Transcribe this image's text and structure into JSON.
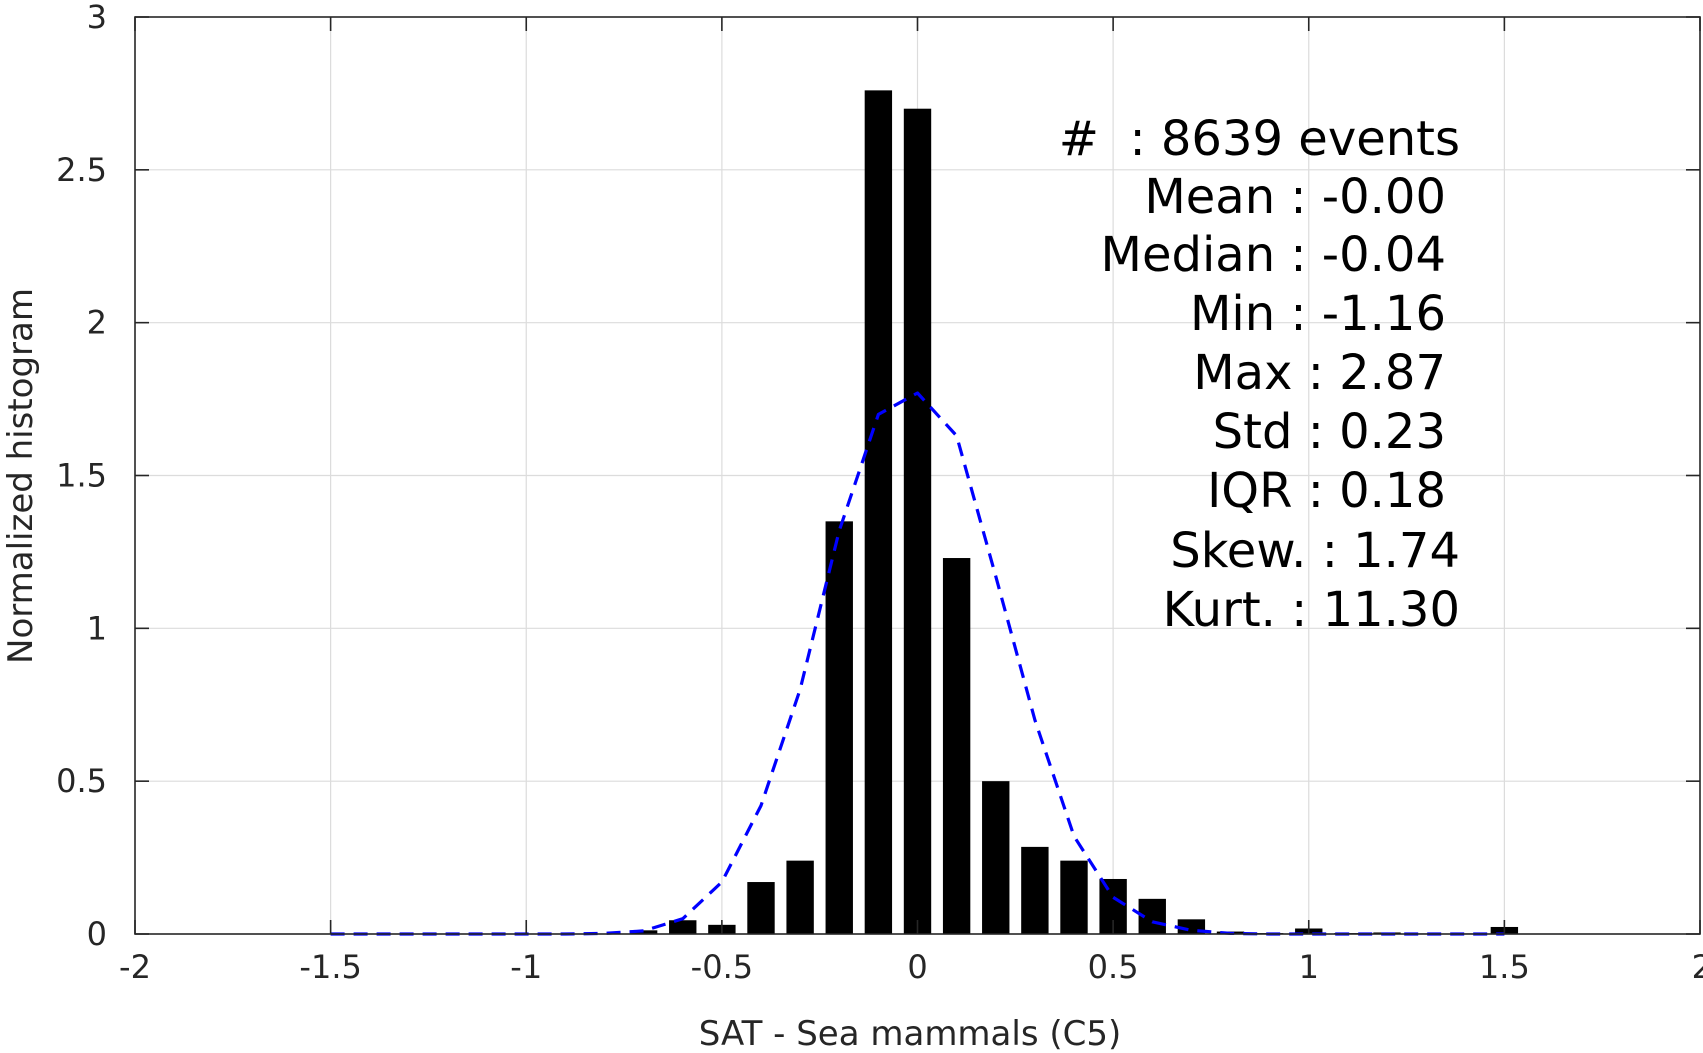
{
  "chart_data": {
    "type": "bar",
    "xlabel": "SAT - Sea mammals (C5)",
    "ylabel": "Normalized histogram",
    "xlim": [
      -2,
      2
    ],
    "ylim": [
      0,
      3
    ],
    "x_ticks": [
      -2,
      -1.5,
      -1,
      -0.5,
      0,
      0.5,
      1,
      1.5,
      2
    ],
    "x_tick_labels": [
      "-2",
      "-1.5",
      "-1",
      "-0.5",
      "0",
      "0.5",
      "1",
      "1.5",
      "2"
    ],
    "y_ticks": [
      0,
      0.5,
      1,
      1.5,
      2,
      2.5,
      3
    ],
    "y_tick_labels": [
      "0",
      "0.5",
      "1",
      "1.5",
      "2",
      "2.5",
      "3"
    ],
    "grid": true,
    "bar_width": 0.07,
    "bars": {
      "x": [
        -0.7,
        -0.6,
        -0.5,
        -0.4,
        -0.3,
        -0.2,
        -0.1,
        0.0,
        0.1,
        0.2,
        0.3,
        0.4,
        0.5,
        0.6,
        0.7,
        0.8,
        0.9,
        1.0,
        1.1,
        1.2,
        1.3,
        1.4,
        1.5
      ],
      "values": [
        0.012,
        0.045,
        0.03,
        0.17,
        0.24,
        1.35,
        2.76,
        2.7,
        1.23,
        0.5,
        0.285,
        0.24,
        0.18,
        0.115,
        0.048,
        0.008,
        0.003,
        0.018,
        0.003,
        0.005,
        0.002,
        0.002,
        0.023
      ],
      "color": "#000000"
    },
    "fit_curve": {
      "style": "dashed",
      "color": "#0000ff",
      "x": [
        -1.5,
        -1.0,
        -0.9,
        -0.8,
        -0.7,
        -0.6,
        -0.5,
        -0.4,
        -0.3,
        -0.2,
        -0.1,
        0.0,
        0.1,
        0.2,
        0.3,
        0.4,
        0.5,
        0.6,
        0.7,
        0.8,
        0.9,
        1.0,
        1.5
      ],
      "y": [
        0.0,
        0.0,
        0.0,
        0.002,
        0.01,
        0.05,
        0.17,
        0.42,
        0.8,
        1.32,
        1.7,
        1.77,
        1.63,
        1.17,
        0.7,
        0.32,
        0.12,
        0.04,
        0.012,
        0.002,
        0.0,
        0.0,
        0.0
      ]
    },
    "annotations": [
      "#  : 8639 events",
      "Mean : -0.00",
      "Median : -0.04",
      "Min : -1.16",
      "Max : 2.87",
      "Std : 0.23",
      "IQR : 0.18",
      "Skew. : 1.74",
      "Kurt. : 11.30"
    ],
    "colors": {
      "axis": "#262626",
      "grid": "#dcdcdc",
      "bar": "#000000",
      "fit": "#0000ff",
      "text": "#000000"
    }
  }
}
